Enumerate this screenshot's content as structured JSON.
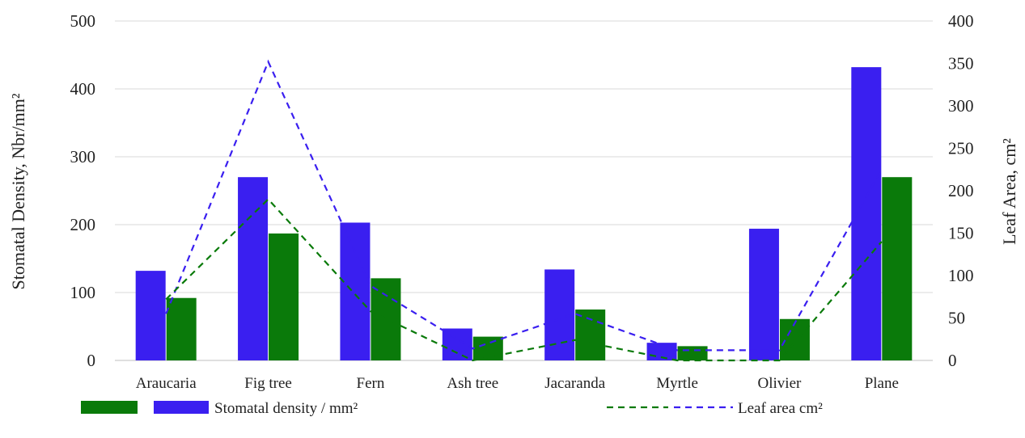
{
  "chart_data": {
    "type": "bar",
    "categories": [
      "Araucaria",
      "Fig tree",
      "Fern",
      "Ash tree",
      "Jacaranda",
      "Myrtle",
      "Olivier",
      "Plane"
    ],
    "bar_series": [
      {
        "values": [
          132,
          270,
          203,
          47,
          134,
          26,
          194,
          432
        ],
        "color": "#3a1ff0"
      },
      {
        "values": [
          92,
          187,
          121,
          35,
          75,
          21,
          61,
          270
        ],
        "color": "#0a7a0a"
      }
    ],
    "line_series": [
      {
        "axis": "right",
        "values": [
          55,
          352,
          88,
          14,
          55,
          12,
          12,
          225
        ],
        "color": "#3a1ff0"
      },
      {
        "axis": "right",
        "values": [
          72,
          190,
          58,
          0,
          24,
          0,
          0,
          140
        ],
        "color": "#0a7a0a"
      }
    ],
    "ylabel_left": "Stomatal Density, Nbr/mm²",
    "ylabel_right": "Leaf Area, cm²",
    "ylim_left": [
      0,
      500
    ],
    "ylim_right": [
      0,
      400
    ],
    "yticks_left": [
      "0",
      "100",
      "200",
      "300",
      "400",
      "500"
    ],
    "yticks_right": [
      "0",
      "50",
      "100",
      "150",
      "200",
      "250",
      "300",
      "350",
      "400"
    ],
    "grid": true,
    "legend_placement": "bottom",
    "legend": {
      "bars_label": "Stomatal density / mm²",
      "lines_label": "Leaf area cm²"
    }
  }
}
